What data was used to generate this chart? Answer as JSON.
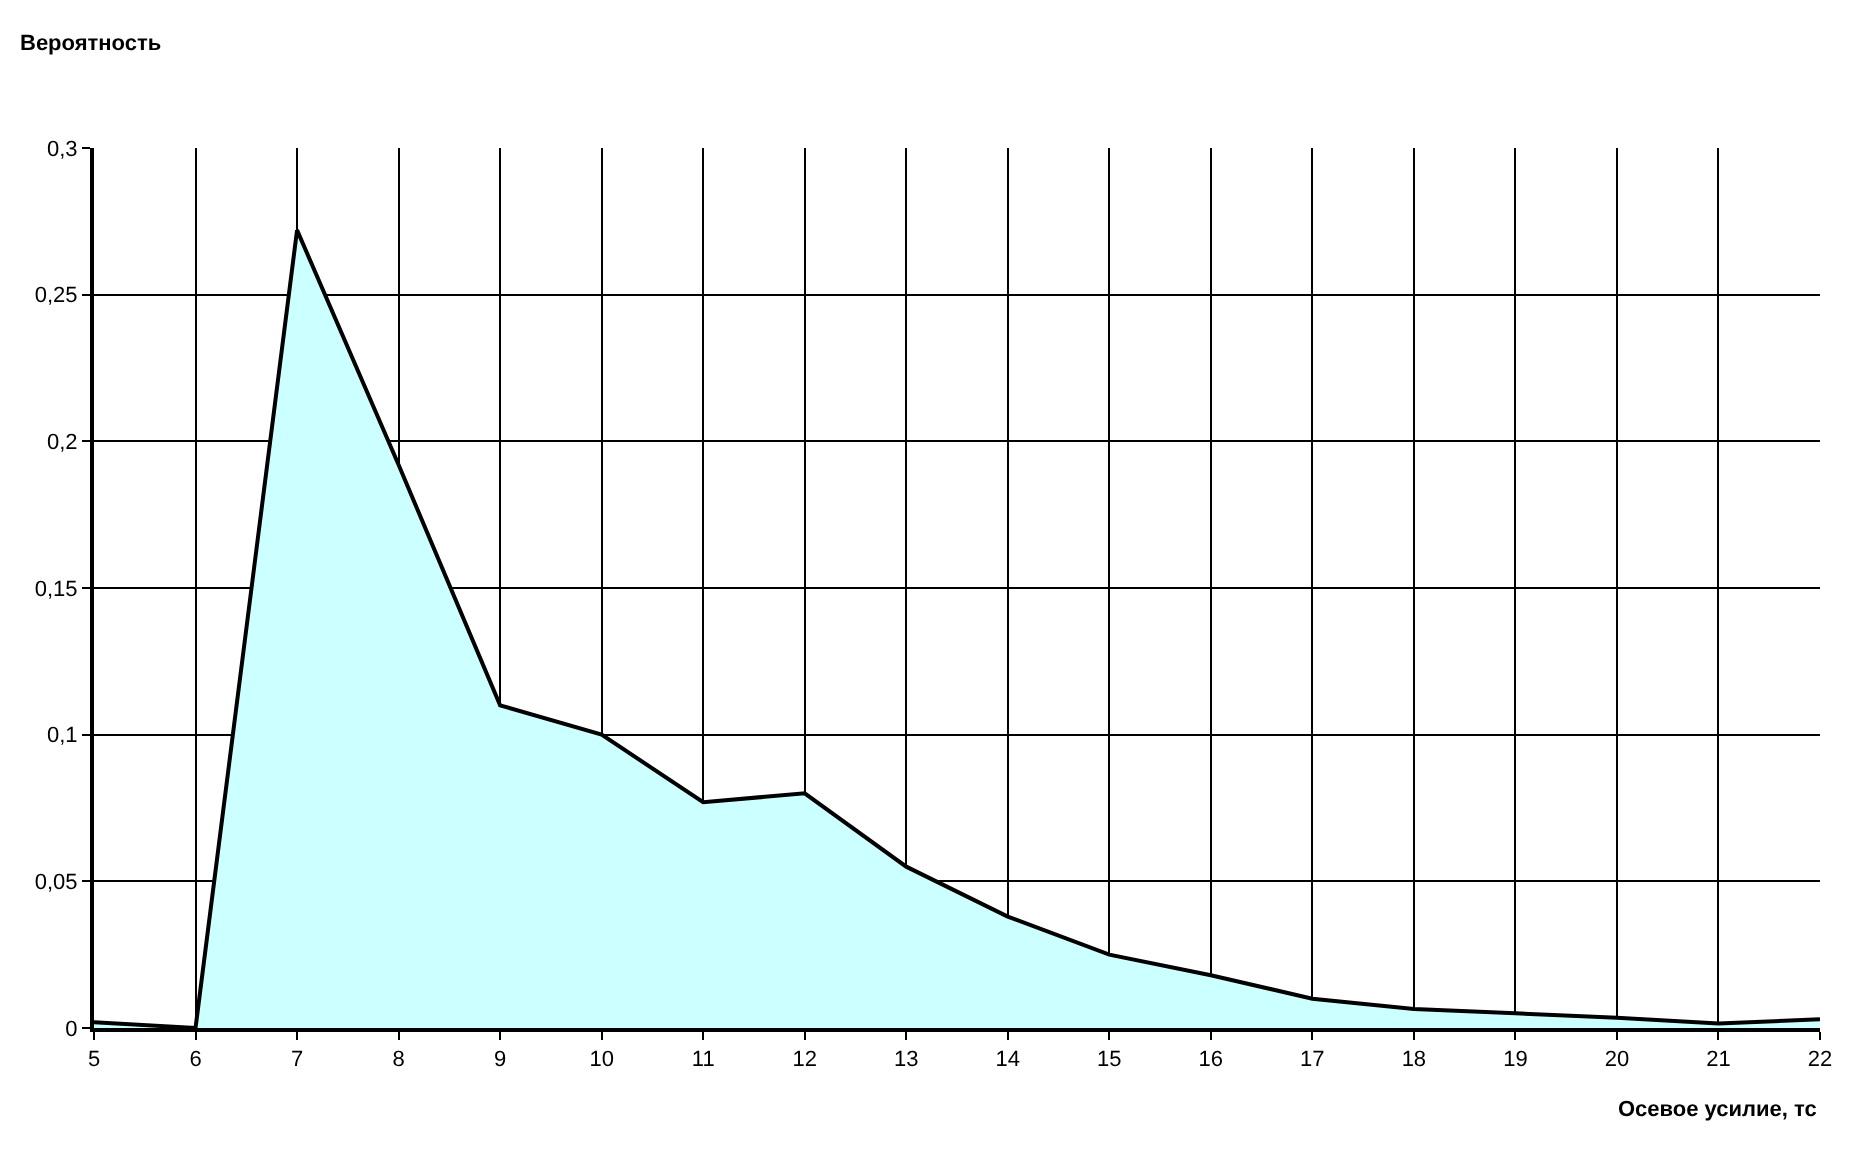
{
  "chart_data": {
    "type": "area",
    "xlabel": "Осевое усилие, тс",
    "ylabel": "Вероятность",
    "x": [
      5,
      6,
      7,
      8,
      9,
      10,
      11,
      12,
      13,
      14,
      15,
      16,
      17,
      18,
      19,
      20,
      21,
      22
    ],
    "series": [
      {
        "color": "#ccffff",
        "values": [
          0.002,
          0,
          0.272,
          0.192,
          0.11,
          0.1,
          0.077,
          0.08,
          0.055,
          0.038,
          0.025,
          0.018,
          0.01,
          0.0065,
          0.005,
          0.0035,
          0.0015,
          0.003
        ]
      }
    ],
    "xlim": [
      5,
      22
    ],
    "xticks": [
      5,
      6,
      7,
      8,
      9,
      10,
      11,
      12,
      13,
      14,
      15,
      16,
      17,
      18,
      19,
      20,
      21,
      22
    ],
    "ylim": [
      0,
      0.3
    ],
    "yticks": [
      {
        "value": 0,
        "label": "0"
      },
      {
        "value": 0.05,
        "label": "0,05"
      },
      {
        "value": 0.1,
        "label": "0,1"
      },
      {
        "value": 0.15,
        "label": "0,15"
      },
      {
        "value": 0.2,
        "label": "0,2"
      },
      {
        "value": 0.25,
        "label": "0,25"
      },
      {
        "value": 0.3,
        "label": "0,3"
      }
    ],
    "grid": true
  }
}
